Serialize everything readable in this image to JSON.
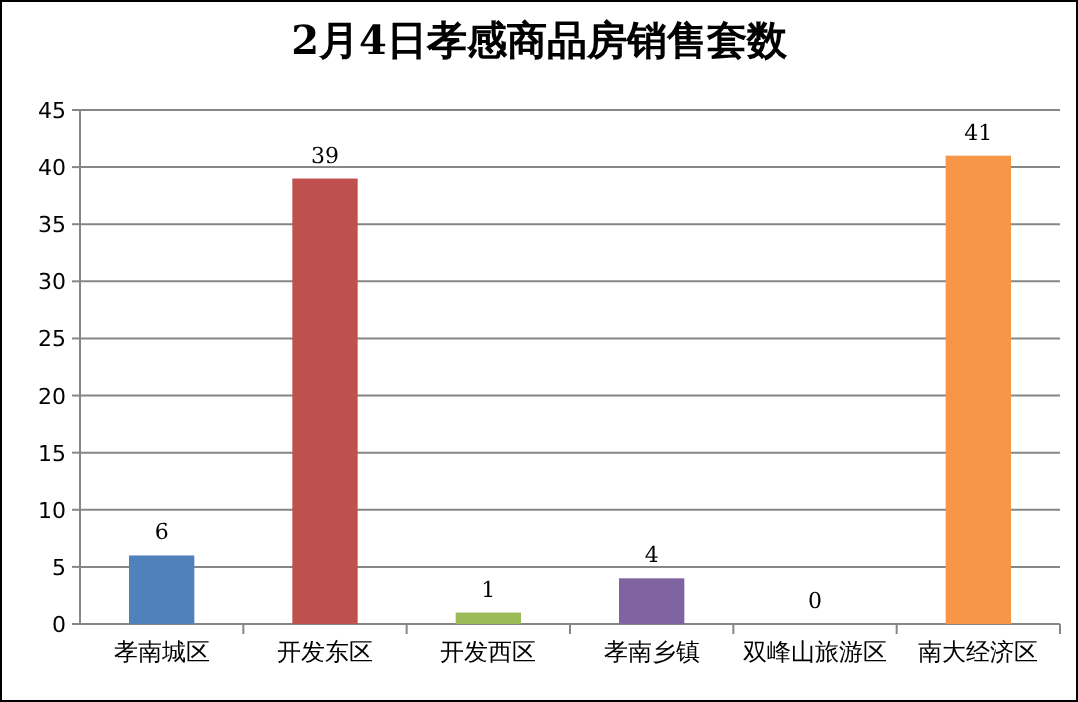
{
  "chart_data": {
    "type": "bar",
    "title": "2月4日孝感商品房销售套数",
    "categories": [
      "孝南城区",
      "开发东区",
      "开发西区",
      "孝南乡镇",
      "双峰山旅游区",
      "南大经济区"
    ],
    "values": [
      6,
      39,
      1,
      4,
      0,
      41
    ],
    "colors": [
      "#4f81bd",
      "#c0504d",
      "#9bbb59",
      "#8064a2",
      "#4bacc6",
      "#f79646"
    ],
    "ylim": [
      0,
      45
    ],
    "yticks": [
      0,
      5,
      10,
      15,
      20,
      25,
      30,
      35,
      40,
      45
    ],
    "grid": "y",
    "data_labels": true
  }
}
